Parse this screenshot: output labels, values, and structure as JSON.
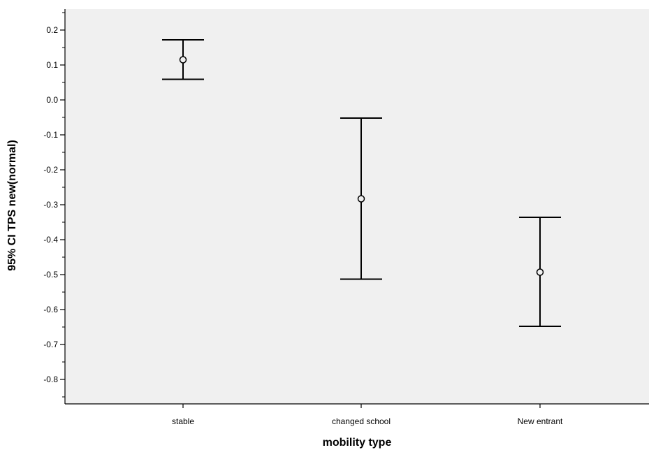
{
  "chart_data": {
    "type": "error-bar",
    "categories": [
      "stable",
      "changed school",
      "New entrant"
    ],
    "series": [
      {
        "means": [
          0.115,
          -0.283,
          -0.493
        ],
        "lower": [
          0.059,
          -0.513,
          -0.648
        ],
        "upper": [
          0.172,
          -0.052,
          -0.336
        ]
      }
    ],
    "xlabel": "mobility type",
    "ylabel": "95% CI TPS new(normal)",
    "ylim": [
      -0.87,
      0.26
    ],
    "yticks": [
      "0.2",
      "0.1",
      "0.0",
      "-0.1",
      "-0.2",
      "-0.3",
      "-0.4",
      "-0.5",
      "-0.6",
      "-0.7",
      "-0.8"
    ],
    "ytick_values": [
      0.2,
      0.1,
      0.0,
      -0.1,
      -0.2,
      -0.3,
      -0.4,
      -0.5,
      -0.6,
      -0.7,
      -0.8
    ],
    "plot_background": "#f0f0f0",
    "grid": false,
    "legend": "none"
  }
}
